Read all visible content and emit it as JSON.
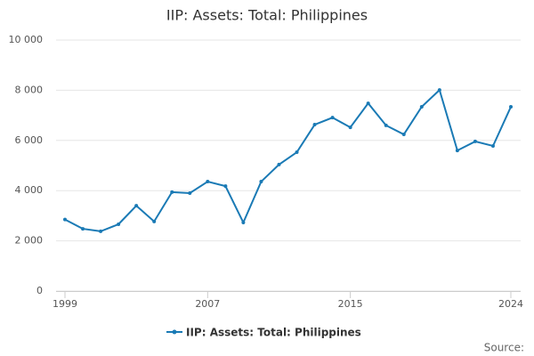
{
  "chart_data": {
    "type": "line",
    "title": "IIP: Assets: Total: Philippines",
    "x": [
      1999,
      2000,
      2001,
      2002,
      2003,
      2004,
      2005,
      2006,
      2007,
      2008,
      2009,
      2010,
      2011,
      2012,
      2013,
      2014,
      2015,
      2016,
      2017,
      2018,
      2019,
      2020,
      2021,
      2022,
      2023,
      2024
    ],
    "series": [
      {
        "name": "IIP: Assets: Total: Philippines",
        "color": "#1a7ab5",
        "values": [
          2850,
          2480,
          2380,
          2660,
          3400,
          2770,
          3940,
          3900,
          4360,
          4180,
          2730,
          4360,
          5040,
          5530,
          6630,
          6910,
          6520,
          7480,
          6600,
          6240,
          7340,
          8010,
          5600,
          5960,
          5780,
          7340
        ]
      }
    ],
    "xlim": [
      1999,
      2024
    ],
    "xticks": [
      1999,
      2007,
      2015,
      2024
    ],
    "ylim": [
      0,
      10000
    ],
    "yticks": [
      0,
      {
        "value": 2000,
        "label": "2 000"
      },
      {
        "value": 4000,
        "label": "4 000"
      },
      {
        "value": 6000,
        "label": "6 000"
      },
      {
        "value": 8000,
        "label": "8 000"
      },
      {
        "value": 10000,
        "label": "10 000"
      }
    ],
    "grid": true,
    "source": "Source:"
  }
}
